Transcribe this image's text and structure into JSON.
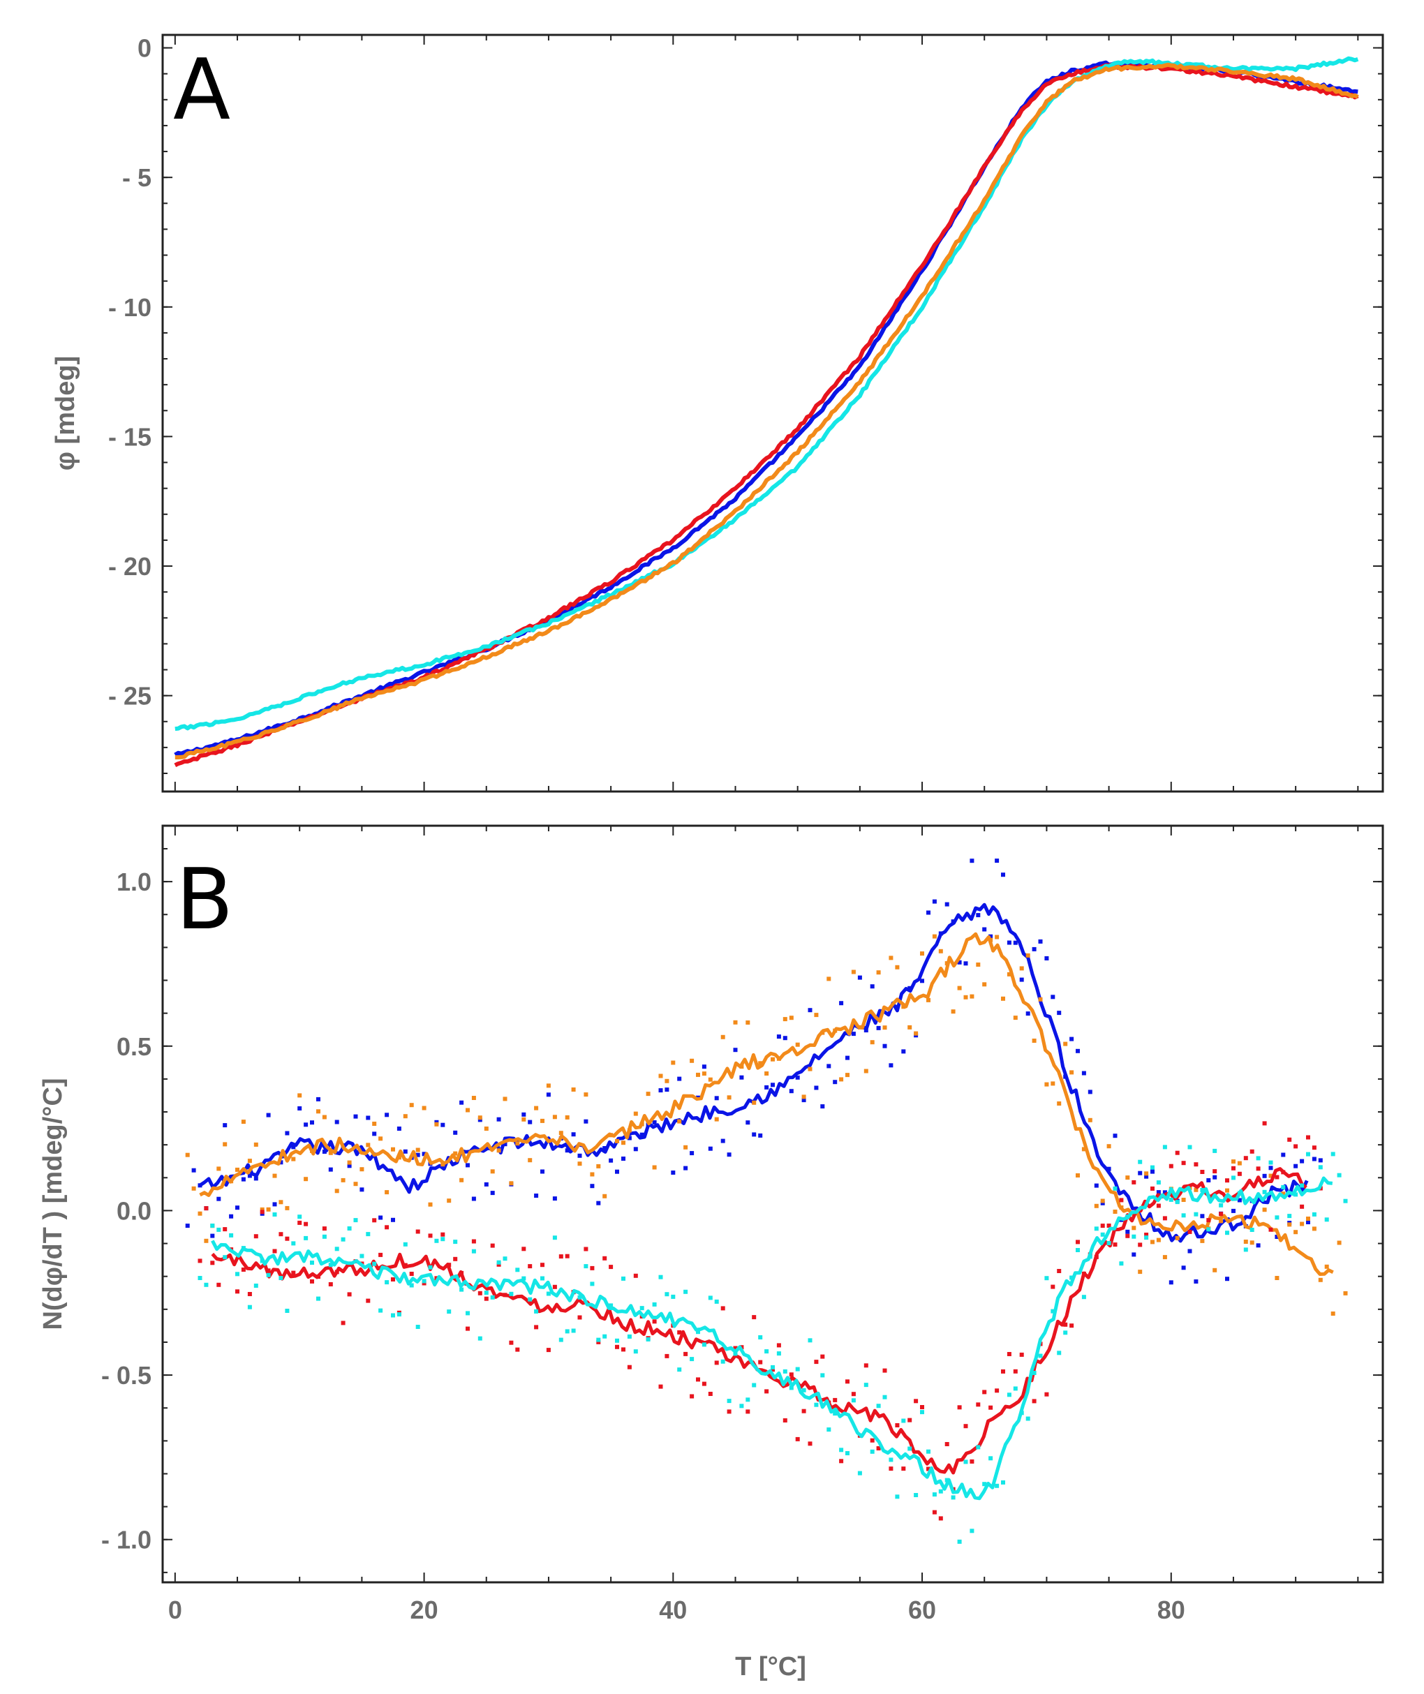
{
  "chart_data": [
    {
      "type": "line",
      "panel_label": "A",
      "title": "",
      "xlabel": "",
      "ylabel": "φ [mdeg]",
      "xlim": [
        -1,
        97
      ],
      "ylim": [
        -28.7,
        0.5
      ],
      "xticks": [
        0,
        20,
        40,
        60,
        80
      ],
      "xticks_labeled": false,
      "yticks": [
        0,
        -5,
        -10,
        -15,
        -20,
        -25
      ],
      "ytick_labels": [
        "0",
        "- 5",
        "- 10",
        "- 15",
        "- 20",
        "- 25"
      ],
      "series": [
        {
          "name": "blue",
          "color": "#0a14e6",
          "x": [
            0,
            5,
            10,
            15,
            20,
            25,
            30,
            35,
            40,
            45,
            50,
            55,
            60,
            62,
            65,
            68,
            70,
            72,
            75,
            80,
            85,
            90,
            95
          ],
          "y": [
            -27.3,
            -26.7,
            -25.9,
            -25.0,
            -24.1,
            -23.2,
            -22.1,
            -20.8,
            -19.3,
            -17.4,
            -15.0,
            -12.3,
            -8.6,
            -7.0,
            -4.6,
            -2.3,
            -1.3,
            -0.9,
            -0.6,
            -0.7,
            -0.9,
            -1.3,
            -1.7
          ]
        },
        {
          "name": "red",
          "color": "#e8141e",
          "x": [
            0,
            5,
            10,
            15,
            20,
            25,
            30,
            35,
            40,
            45,
            50,
            55,
            60,
            62,
            65,
            68,
            70,
            72,
            75,
            80,
            85,
            90,
            95
          ],
          "y": [
            -27.7,
            -26.9,
            -26.0,
            -25.1,
            -24.3,
            -23.2,
            -22.0,
            -20.6,
            -19.0,
            -17.0,
            -14.7,
            -11.9,
            -8.4,
            -6.9,
            -4.6,
            -2.4,
            -1.4,
            -1.0,
            -0.7,
            -0.8,
            -1.1,
            -1.5,
            -1.9
          ]
        },
        {
          "name": "cyan",
          "color": "#15e6e6",
          "x": [
            0,
            5,
            10,
            15,
            20,
            25,
            30,
            35,
            40,
            45,
            50,
            55,
            60,
            62,
            65,
            68,
            70,
            72,
            75,
            77,
            80,
            85,
            90,
            95
          ],
          "y": [
            -26.3,
            -25.9,
            -25.1,
            -24.3,
            -23.8,
            -23.1,
            -22.2,
            -21.1,
            -19.9,
            -18.2,
            -16.2,
            -13.4,
            -10.0,
            -8.4,
            -6.1,
            -3.5,
            -2.2,
            -1.3,
            -0.7,
            -0.5,
            -0.6,
            -0.8,
            -0.8,
            -0.4
          ]
        },
        {
          "name": "orange",
          "color": "#f28a1a",
          "x": [
            0,
            5,
            10,
            15,
            20,
            25,
            30,
            35,
            40,
            45,
            50,
            55,
            60,
            62,
            65,
            68,
            70,
            72,
            75,
            80,
            85,
            90,
            95
          ],
          "y": [
            -27.4,
            -26.8,
            -26.0,
            -25.1,
            -24.4,
            -23.5,
            -22.5,
            -21.3,
            -19.9,
            -17.9,
            -15.6,
            -12.9,
            -9.6,
            -8.1,
            -5.9,
            -3.4,
            -2.1,
            -1.3,
            -0.8,
            -0.7,
            -0.9,
            -1.2,
            -1.9
          ]
        }
      ]
    },
    {
      "type": "line",
      "panel_label": "B",
      "title": "",
      "xlabel": "T [°C]",
      "ylabel": "N(dφ/dT ) [mdeg/°C]",
      "xlim": [
        -1,
        97
      ],
      "ylim": [
        -1.13,
        1.17
      ],
      "xticks": [
        0,
        20,
        40,
        60,
        80
      ],
      "xtick_labels": [
        "0",
        "20",
        "40",
        "60",
        "80"
      ],
      "yticks": [
        1.0,
        0.5,
        0.0,
        -0.5,
        -1.0
      ],
      "ytick_labels": [
        "1.0",
        "0.5",
        "0.0",
        "- 0.5",
        "- 1.0"
      ],
      "series": [
        {
          "name": "blue",
          "color": "#0a14e6",
          "x": [
            2,
            4,
            6,
            8,
            10,
            12,
            14,
            16,
            19,
            22,
            25,
            28,
            31,
            34,
            37,
            40,
            43,
            46,
            49,
            52,
            55,
            58,
            60,
            62,
            64,
            66,
            68,
            70,
            72,
            74,
            76,
            78,
            80,
            82,
            85,
            88,
            91
          ],
          "y": [
            0.07,
            0.09,
            0.12,
            0.15,
            0.2,
            0.19,
            0.19,
            0.16,
            0.07,
            0.15,
            0.19,
            0.21,
            0.2,
            0.18,
            0.23,
            0.27,
            0.3,
            0.33,
            0.38,
            0.48,
            0.56,
            0.62,
            0.72,
            0.86,
            0.9,
            0.92,
            0.8,
            0.6,
            0.38,
            0.18,
            0.06,
            -0.02,
            -0.08,
            -0.07,
            -0.04,
            0.05,
            0.08
          ]
        },
        {
          "name": "orange",
          "color": "#f28a1a",
          "x": [
            2,
            4,
            6,
            8,
            10,
            13,
            16,
            19,
            22,
            25,
            28,
            31,
            34,
            37,
            40,
            43,
            46,
            49,
            52,
            55,
            58,
            60,
            62,
            64,
            65,
            66,
            68,
            70,
            72,
            74,
            76,
            78,
            80,
            82,
            85,
            88,
            91,
            93
          ],
          "y": [
            0.04,
            0.1,
            0.13,
            0.15,
            0.19,
            0.2,
            0.17,
            0.16,
            0.16,
            0.18,
            0.21,
            0.21,
            0.19,
            0.26,
            0.31,
            0.38,
            0.45,
            0.47,
            0.53,
            0.57,
            0.62,
            0.65,
            0.74,
            0.82,
            0.83,
            0.8,
            0.66,
            0.5,
            0.3,
            0.12,
            0.02,
            -0.04,
            -0.04,
            -0.04,
            -0.02,
            -0.05,
            -0.15,
            -0.2
          ]
        },
        {
          "name": "red",
          "color": "#e8141e",
          "x": [
            3,
            6,
            9,
            12,
            15,
            18,
            21,
            24,
            27,
            30,
            33,
            36,
            39,
            42,
            45,
            48,
            51,
            54,
            56,
            58,
            60,
            62,
            64,
            66,
            68,
            70,
            72,
            74,
            76,
            78,
            80,
            82,
            85,
            88,
            91
          ],
          "y": [
            -0.14,
            -0.16,
            -0.2,
            -0.18,
            -0.18,
            -0.15,
            -0.16,
            -0.22,
            -0.27,
            -0.29,
            -0.28,
            -0.34,
            -0.37,
            -0.4,
            -0.46,
            -0.5,
            -0.55,
            -0.6,
            -0.62,
            -0.67,
            -0.75,
            -0.79,
            -0.73,
            -0.62,
            -0.55,
            -0.42,
            -0.28,
            -0.14,
            -0.05,
            0.02,
            0.04,
            0.07,
            0.04,
            0.11,
            0.09
          ]
        },
        {
          "name": "cyan",
          "color": "#15e6e6",
          "x": [
            3,
            6,
            9,
            12,
            15,
            18,
            21,
            24,
            27,
            30,
            33,
            36,
            39,
            42,
            45,
            48,
            51,
            54,
            56,
            58,
            60,
            62,
            64,
            65,
            66,
            68,
            70,
            72,
            74,
            76,
            78,
            80,
            82,
            85,
            88,
            91,
            93
          ],
          "y": [
            -0.1,
            -0.14,
            -0.15,
            -0.14,
            -0.18,
            -0.2,
            -0.22,
            -0.22,
            -0.22,
            -0.24,
            -0.27,
            -0.3,
            -0.32,
            -0.36,
            -0.42,
            -0.5,
            -0.56,
            -0.64,
            -0.69,
            -0.73,
            -0.78,
            -0.83,
            -0.86,
            -0.87,
            -0.8,
            -0.6,
            -0.35,
            -0.2,
            -0.1,
            -0.02,
            0.03,
            0.05,
            0.05,
            0.04,
            0.05,
            0.06,
            0.1
          ]
        }
      ]
    }
  ]
}
